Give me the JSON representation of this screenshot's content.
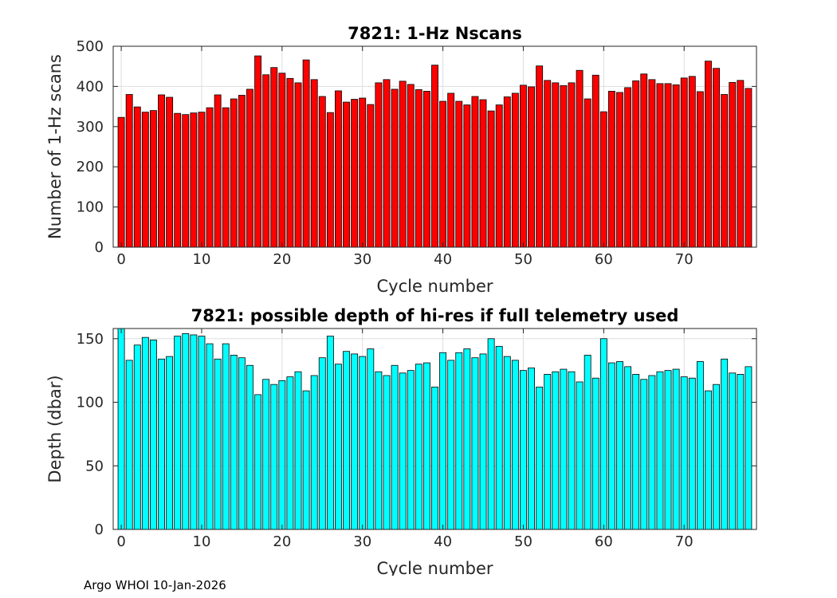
{
  "footer": "Argo WHOI 10-Jan-2026",
  "colors": {
    "top_bars": "#ff0000",
    "bottom_bars": "#00ffff",
    "bar_edge": "#000000",
    "grid": "#dddddd"
  },
  "chart_data": [
    {
      "type": "bar",
      "title": "7821: 1-Hz Nscans",
      "xlabel": "Cycle number",
      "ylabel": "Number of 1-Hz scans",
      "xlim": [
        -1,
        79
      ],
      "ylim": [
        0,
        500
      ],
      "xticks": [
        0,
        10,
        20,
        30,
        40,
        50,
        60,
        70
      ],
      "yticks": [
        0,
        100,
        200,
        300,
        400,
        500
      ],
      "grid": true,
      "x": [
        0,
        1,
        2,
        3,
        4,
        5,
        6,
        7,
        8,
        9,
        10,
        11,
        12,
        13,
        14,
        15,
        16,
        17,
        18,
        19,
        20,
        21,
        22,
        23,
        24,
        25,
        26,
        27,
        28,
        29,
        30,
        31,
        32,
        33,
        34,
        35,
        36,
        37,
        38,
        39,
        40,
        41,
        42,
        43,
        44,
        45,
        46,
        47,
        48,
        49,
        50,
        51,
        52,
        53,
        54,
        55,
        56,
        57,
        58,
        59,
        60,
        61,
        62,
        63,
        64,
        65,
        66,
        67,
        68,
        69,
        70,
        71,
        72,
        73,
        74,
        75,
        76,
        77,
        78
      ],
      "values": [
        323,
        380,
        349,
        336,
        340,
        379,
        373,
        333,
        330,
        334,
        336,
        347,
        379,
        347,
        369,
        378,
        393,
        476,
        429,
        447,
        433,
        420,
        409,
        466,
        417,
        375,
        335,
        389,
        361,
        368,
        371,
        355,
        409,
        417,
        393,
        413,
        405,
        392,
        388,
        453,
        363,
        383,
        363,
        354,
        375,
        367,
        339,
        354,
        374,
        383,
        403,
        399,
        451,
        415,
        409,
        402,
        409,
        440,
        369,
        428,
        337,
        388,
        385,
        397,
        414,
        431,
        417,
        407,
        407,
        404,
        421,
        425,
        387,
        463,
        445,
        380,
        410,
        415,
        395
      ]
    },
    {
      "type": "bar",
      "title": "7821: possible depth of hi-res if full telemetry used",
      "xlabel": "Cycle number",
      "ylabel": "Depth (dbar)",
      "xlim": [
        -1,
        79
      ],
      "ylim": [
        0,
        158
      ],
      "xticks": [
        0,
        10,
        20,
        30,
        40,
        50,
        60,
        70
      ],
      "yticks": [
        0,
        50,
        100,
        150
      ],
      "grid": true,
      "x": [
        0,
        1,
        2,
        3,
        4,
        5,
        6,
        7,
        8,
        9,
        10,
        11,
        12,
        13,
        14,
        15,
        16,
        17,
        18,
        19,
        20,
        21,
        22,
        23,
        24,
        25,
        26,
        27,
        28,
        29,
        30,
        31,
        32,
        33,
        34,
        35,
        36,
        37,
        38,
        39,
        40,
        41,
        42,
        43,
        44,
        45,
        46,
        47,
        48,
        49,
        50,
        51,
        52,
        53,
        54,
        55,
        56,
        57,
        58,
        59,
        60,
        61,
        62,
        63,
        64,
        65,
        66,
        67,
        68,
        69,
        70,
        71,
        72,
        73,
        74,
        75,
        76,
        77,
        78
      ],
      "values": [
        158,
        133,
        145,
        151,
        149,
        134,
        136,
        152,
        154,
        153,
        152,
        146,
        134,
        146,
        137,
        135,
        129,
        106,
        118,
        114,
        117,
        120,
        124,
        109,
        121,
        135,
        152,
        130,
        140,
        138,
        136,
        142,
        124,
        121,
        129,
        123,
        125,
        130,
        131,
        112,
        139,
        133,
        139,
        142,
        135,
        138,
        150,
        144,
        136,
        133,
        125,
        127,
        112,
        122,
        124,
        126,
        124,
        116,
        137,
        119,
        150,
        131,
        132,
        128,
        122,
        118,
        121,
        124,
        125,
        126,
        120,
        119,
        132,
        109,
        114,
        134,
        123,
        122,
        128
      ]
    }
  ]
}
